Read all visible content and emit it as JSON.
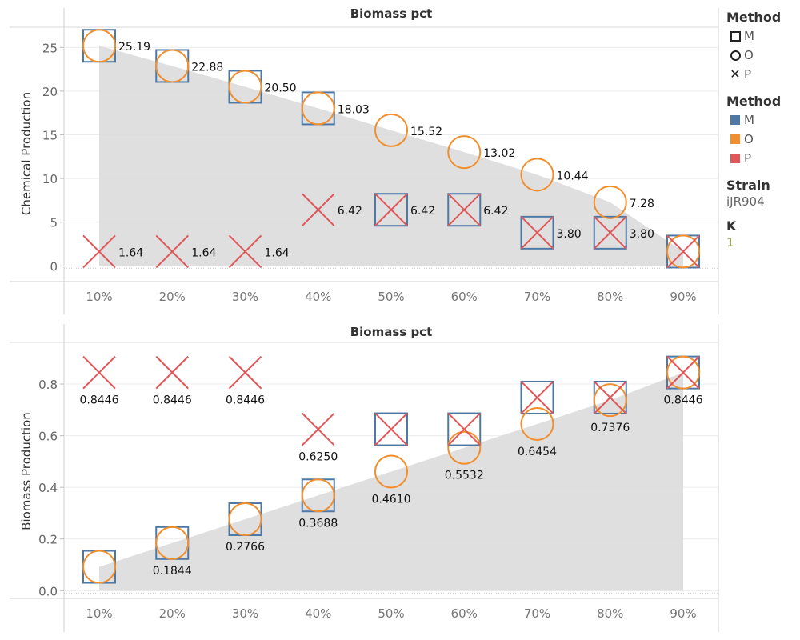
{
  "legend": {
    "shape_title": "Method",
    "shape_items": [
      {
        "label": "M",
        "shape": "square"
      },
      {
        "label": "O",
        "shape": "circle"
      },
      {
        "label": "P",
        "shape": "x"
      }
    ],
    "color_title": "Method",
    "color_items": [
      {
        "label": "M",
        "color": "#4e79a7"
      },
      {
        "label": "O",
        "color": "#f28e2b"
      },
      {
        "label": "P",
        "color": "#e15759"
      }
    ],
    "strain_title": "Strain",
    "strain_value": "iJR904",
    "k_title": "K",
    "k_value": "1"
  },
  "chart_data": [
    {
      "type": "scatter",
      "title": "Biomass pct",
      "ylabel": "Chemical Production",
      "categories": [
        "10%",
        "20%",
        "30%",
        "40%",
        "50%",
        "60%",
        "70%",
        "80%",
        "90%"
      ],
      "ylim": [
        -1.8,
        27.5
      ],
      "yticks": [
        0,
        5,
        10,
        15,
        20,
        25
      ],
      "area_series": "O",
      "series": [
        {
          "name": "M",
          "shape": "square",
          "color": "#4e79a7",
          "values": [
            25.19,
            22.88,
            20.5,
            18.03,
            6.42,
            6.42,
            3.8,
            3.8,
            1.64
          ]
        },
        {
          "name": "O",
          "shape": "circle",
          "color": "#f28e2b",
          "values": [
            25.19,
            22.88,
            20.5,
            18.03,
            15.52,
            13.02,
            10.44,
            7.28,
            1.64
          ]
        },
        {
          "name": "P",
          "shape": "x",
          "color": "#e15759",
          "values": [
            1.64,
            1.64,
            1.64,
            6.42,
            6.42,
            6.42,
            3.8,
            3.8,
            1.64
          ]
        }
      ],
      "labels": [
        "25.19",
        "22.88",
        "20.50",
        "18.03",
        "15.52",
        "13.02",
        "10.44",
        "7.28",
        "",
        "1.64",
        "1.64",
        "1.64",
        "6.42",
        "6.42",
        "6.42",
        "3.80",
        "3.80"
      ],
      "label_anchor": [
        0,
        1,
        2,
        3,
        4,
        5,
        6,
        7,
        -1,
        0,
        1,
        2,
        3,
        4,
        5,
        6,
        7
      ],
      "label_value": [
        25.19,
        22.88,
        20.5,
        18.03,
        15.52,
        13.02,
        10.44,
        7.28,
        0,
        1.64,
        1.64,
        1.64,
        6.42,
        6.42,
        6.42,
        3.8,
        3.8
      ],
      "label_pos": "right",
      "grid": true
    },
    {
      "type": "scatter",
      "title": "Biomass pct",
      "ylabel": "Biomass Production",
      "categories": [
        "10%",
        "20%",
        "30%",
        "40%",
        "50%",
        "60%",
        "70%",
        "80%",
        "90%"
      ],
      "ylim": [
        -0.03,
        0.955
      ],
      "yticks": [
        0.0,
        0.2,
        0.4,
        0.6,
        0.8
      ],
      "ytick_labels": [
        "0.0",
        "0.2",
        "0.4",
        "0.6",
        "0.8"
      ],
      "area_series": "O",
      "series": [
        {
          "name": "M",
          "shape": "square",
          "color": "#4e79a7",
          "values": [
            0.0922,
            0.1844,
            0.2766,
            0.3688,
            0.625,
            0.625,
            0.7476,
            0.7476,
            0.8446
          ]
        },
        {
          "name": "O",
          "shape": "circle",
          "color": "#f28e2b",
          "values": [
            0.0922,
            0.1844,
            0.2766,
            0.3688,
            0.461,
            0.5532,
            0.6454,
            0.7376,
            0.8446
          ]
        },
        {
          "name": "P",
          "shape": "x",
          "color": "#e15759",
          "values": [
            0.8446,
            0.8446,
            0.8446,
            0.625,
            0.625,
            0.625,
            0.7476,
            0.7476,
            0.8446
          ]
        }
      ],
      "labels": [
        "0.8446",
        "0.8446",
        "0.8446",
        "0.6250",
        "0.1844",
        "0.2766",
        "0.3688",
        "0.4610",
        "0.5532",
        "0.6454",
        "0.7376",
        "0.8446"
      ],
      "label_anchor": [
        0,
        1,
        2,
        3,
        1,
        2,
        3,
        4,
        5,
        6,
        7,
        8
      ],
      "label_value": [
        0.8446,
        0.8446,
        0.8446,
        0.625,
        0.1844,
        0.2766,
        0.3688,
        0.461,
        0.5532,
        0.6454,
        0.7376,
        0.8446
      ],
      "label_pos": "below",
      "grid": true
    }
  ]
}
